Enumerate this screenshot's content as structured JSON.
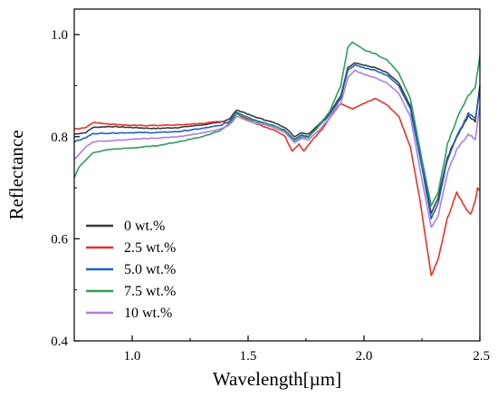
{
  "chart_data": {
    "type": "line",
    "title": "",
    "xlabel": "Wavelength[µm]",
    "ylabel": "Reflectance",
    "xlim": [
      0.75,
      2.5
    ],
    "ylim": [
      0.4,
      1.05
    ],
    "xticks": [
      1.0,
      1.5,
      2.0,
      2.5
    ],
    "xtick_labels": [
      "1.0",
      "1.5",
      "2.0",
      "2.5"
    ],
    "yticks": [
      0.4,
      0.6,
      0.8,
      1.0
    ],
    "ytick_labels": [
      "0.4",
      "0.6",
      "0.8",
      "1.0"
    ],
    "grid": false,
    "legend_position": "bottom-left",
    "series": [
      {
        "name": "0 wt.%",
        "color": "#3a3a3a",
        "points": [
          [
            0.75,
            0.805
          ],
          [
            0.8,
            0.808
          ],
          [
            0.83,
            0.818
          ],
          [
            0.9,
            0.82
          ],
          [
            1.0,
            0.818
          ],
          [
            1.1,
            0.816
          ],
          [
            1.2,
            0.818
          ],
          [
            1.3,
            0.823
          ],
          [
            1.38,
            0.828
          ],
          [
            1.42,
            0.835
          ],
          [
            1.45,
            0.852
          ],
          [
            1.48,
            0.848
          ],
          [
            1.52,
            0.84
          ],
          [
            1.58,
            0.832
          ],
          [
            1.62,
            0.826
          ],
          [
            1.66,
            0.818
          ],
          [
            1.7,
            0.8
          ],
          [
            1.73,
            0.808
          ],
          [
            1.76,
            0.805
          ],
          [
            1.8,
            0.822
          ],
          [
            1.85,
            0.845
          ],
          [
            1.9,
            0.88
          ],
          [
            1.93,
            0.935
          ],
          [
            1.96,
            0.945
          ],
          [
            2.0,
            0.94
          ],
          [
            2.05,
            0.935
          ],
          [
            2.1,
            0.925
          ],
          [
            2.15,
            0.905
          ],
          [
            2.2,
            0.86
          ],
          [
            2.25,
            0.745
          ],
          [
            2.29,
            0.65
          ],
          [
            2.32,
            0.68
          ],
          [
            2.36,
            0.76
          ],
          [
            2.4,
            0.8
          ],
          [
            2.45,
            0.84
          ],
          [
            2.48,
            0.83
          ],
          [
            2.5,
            0.9
          ]
        ]
      },
      {
        "name": "2.5 wt.%",
        "color": "#e8312b",
        "points": [
          [
            0.75,
            0.815
          ],
          [
            0.8,
            0.818
          ],
          [
            0.83,
            0.828
          ],
          [
            0.9,
            0.825
          ],
          [
            1.0,
            0.822
          ],
          [
            1.1,
            0.822
          ],
          [
            1.2,
            0.823
          ],
          [
            1.3,
            0.826
          ],
          [
            1.38,
            0.83
          ],
          [
            1.42,
            0.826
          ],
          [
            1.45,
            0.845
          ],
          [
            1.48,
            0.838
          ],
          [
            1.52,
            0.828
          ],
          [
            1.58,
            0.818
          ],
          [
            1.62,
            0.812
          ],
          [
            1.66,
            0.8
          ],
          [
            1.69,
            0.771
          ],
          [
            1.72,
            0.785
          ],
          [
            1.74,
            0.772
          ],
          [
            1.78,
            0.795
          ],
          [
            1.82,
            0.815
          ],
          [
            1.87,
            0.85
          ],
          [
            1.9,
            0.865
          ],
          [
            1.95,
            0.855
          ],
          [
            2.0,
            0.865
          ],
          [
            2.05,
            0.875
          ],
          [
            2.1,
            0.862
          ],
          [
            2.15,
            0.84
          ],
          [
            2.2,
            0.78
          ],
          [
            2.24,
            0.68
          ],
          [
            2.29,
            0.528
          ],
          [
            2.32,
            0.56
          ],
          [
            2.36,
            0.64
          ],
          [
            2.38,
            0.665
          ],
          [
            2.4,
            0.69
          ],
          [
            2.42,
            0.675
          ],
          [
            2.44,
            0.658
          ],
          [
            2.46,
            0.648
          ],
          [
            2.48,
            0.675
          ],
          [
            2.49,
            0.7
          ],
          [
            2.5,
            0.695
          ]
        ]
      },
      {
        "name": "5.0 wt.%",
        "color": "#1f5fc4",
        "points": [
          [
            0.75,
            0.79
          ],
          [
            0.8,
            0.798
          ],
          [
            0.83,
            0.806
          ],
          [
            0.9,
            0.807
          ],
          [
            1.0,
            0.808
          ],
          [
            1.1,
            0.808
          ],
          [
            1.2,
            0.81
          ],
          [
            1.3,
            0.816
          ],
          [
            1.38,
            0.822
          ],
          [
            1.42,
            0.83
          ],
          [
            1.45,
            0.848
          ],
          [
            1.48,
            0.842
          ],
          [
            1.52,
            0.834
          ],
          [
            1.58,
            0.826
          ],
          [
            1.62,
            0.82
          ],
          [
            1.66,
            0.812
          ],
          [
            1.7,
            0.795
          ],
          [
            1.73,
            0.803
          ],
          [
            1.76,
            0.8
          ],
          [
            1.8,
            0.818
          ],
          [
            1.85,
            0.842
          ],
          [
            1.9,
            0.875
          ],
          [
            1.93,
            0.93
          ],
          [
            1.96,
            0.94
          ],
          [
            2.0,
            0.935
          ],
          [
            2.05,
            0.93
          ],
          [
            2.1,
            0.92
          ],
          [
            2.15,
            0.9
          ],
          [
            2.2,
            0.855
          ],
          [
            2.25,
            0.74
          ],
          [
            2.29,
            0.64
          ],
          [
            2.32,
            0.67
          ],
          [
            2.36,
            0.755
          ],
          [
            2.4,
            0.8
          ],
          [
            2.45,
            0.845
          ],
          [
            2.48,
            0.835
          ],
          [
            2.5,
            0.89
          ]
        ]
      },
      {
        "name": "7.5 wt.%",
        "color": "#2e9e5b",
        "points": [
          [
            0.75,
            0.72
          ],
          [
            0.77,
            0.74
          ],
          [
            0.8,
            0.755
          ],
          [
            0.83,
            0.768
          ],
          [
            0.9,
            0.775
          ],
          [
            1.0,
            0.778
          ],
          [
            1.1,
            0.782
          ],
          [
            1.2,
            0.79
          ],
          [
            1.3,
            0.8
          ],
          [
            1.38,
            0.812
          ],
          [
            1.42,
            0.825
          ],
          [
            1.45,
            0.845
          ],
          [
            1.48,
            0.84
          ],
          [
            1.52,
            0.832
          ],
          [
            1.58,
            0.825
          ],
          [
            1.62,
            0.82
          ],
          [
            1.66,
            0.81
          ],
          [
            1.7,
            0.792
          ],
          [
            1.73,
            0.8
          ],
          [
            1.76,
            0.798
          ],
          [
            1.8,
            0.818
          ],
          [
            1.85,
            0.848
          ],
          [
            1.9,
            0.9
          ],
          [
            1.93,
            0.975
          ],
          [
            1.95,
            0.985
          ],
          [
            2.0,
            0.97
          ],
          [
            2.05,
            0.962
          ],
          [
            2.1,
            0.95
          ],
          [
            2.15,
            0.925
          ],
          [
            2.2,
            0.875
          ],
          [
            2.25,
            0.755
          ],
          [
            2.29,
            0.665
          ],
          [
            2.32,
            0.69
          ],
          [
            2.36,
            0.785
          ],
          [
            2.4,
            0.835
          ],
          [
            2.45,
            0.88
          ],
          [
            2.48,
            0.895
          ],
          [
            2.5,
            0.96
          ]
        ]
      },
      {
        "name": "10 wt.%",
        "color": "#b07ee0",
        "points": [
          [
            0.75,
            0.755
          ],
          [
            0.77,
            0.765
          ],
          [
            0.8,
            0.78
          ],
          [
            0.83,
            0.79
          ],
          [
            0.9,
            0.792
          ],
          [
            1.0,
            0.795
          ],
          [
            1.1,
            0.797
          ],
          [
            1.2,
            0.8
          ],
          [
            1.3,
            0.807
          ],
          [
            1.38,
            0.815
          ],
          [
            1.42,
            0.823
          ],
          [
            1.45,
            0.84
          ],
          [
            1.48,
            0.835
          ],
          [
            1.52,
            0.828
          ],
          [
            1.58,
            0.822
          ],
          [
            1.62,
            0.816
          ],
          [
            1.66,
            0.808
          ],
          [
            1.7,
            0.788
          ],
          [
            1.73,
            0.797
          ],
          [
            1.76,
            0.794
          ],
          [
            1.8,
            0.81
          ],
          [
            1.85,
            0.835
          ],
          [
            1.9,
            0.865
          ],
          [
            1.93,
            0.915
          ],
          [
            1.96,
            0.93
          ],
          [
            2.0,
            0.922
          ],
          [
            2.05,
            0.915
          ],
          [
            2.1,
            0.905
          ],
          [
            2.15,
            0.885
          ],
          [
            2.2,
            0.84
          ],
          [
            2.25,
            0.715
          ],
          [
            2.29,
            0.622
          ],
          [
            2.32,
            0.645
          ],
          [
            2.36,
            0.73
          ],
          [
            2.4,
            0.775
          ],
          [
            2.45,
            0.805
          ],
          [
            2.48,
            0.795
          ],
          [
            2.5,
            0.86
          ]
        ]
      }
    ]
  }
}
